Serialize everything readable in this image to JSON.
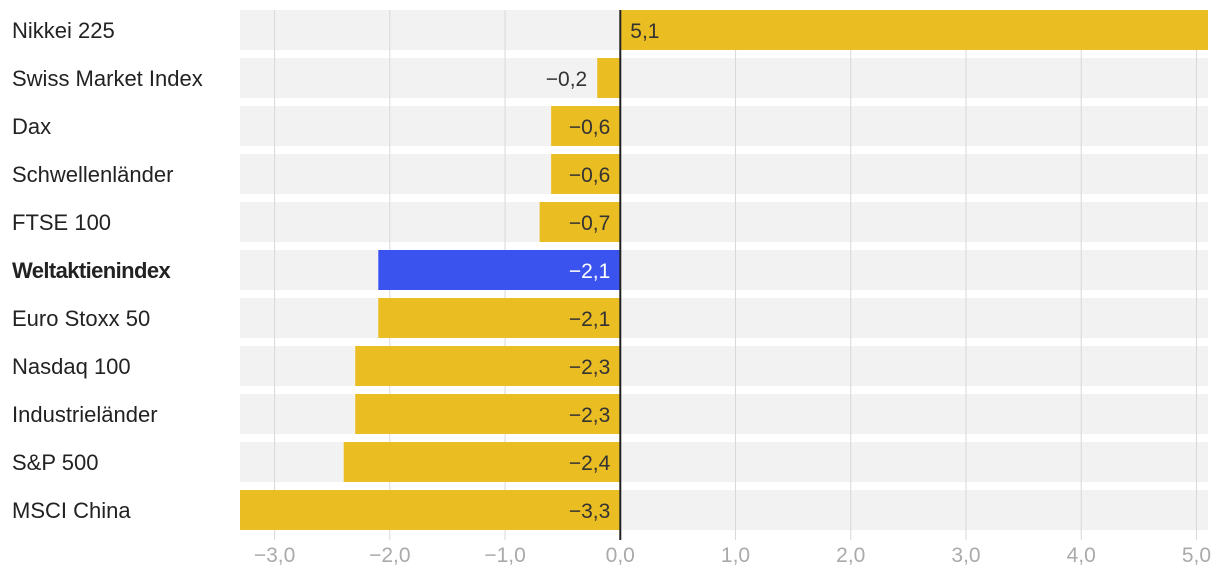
{
  "chart_data": {
    "type": "bar",
    "orientation": "horizontal",
    "title": "",
    "xlabel": "",
    "ylabel": "",
    "xlim": [
      -3.3,
      5.1
    ],
    "x_ticks": [
      -3,
      -2,
      -1,
      0,
      1,
      2,
      3,
      4,
      5
    ],
    "x_tick_labels": [
      "−3,0",
      "−2,0",
      "−1,0",
      "0,0",
      "1,0",
      "2,0",
      "3,0",
      "4,0",
      "5,0"
    ],
    "grid": true,
    "categories": [
      "Nikkei 225",
      "Swiss Market Index",
      "Dax",
      "Schwellenländer",
      "FTSE 100",
      "Weltaktienindex",
      "Euro Stoxx 50",
      "Nasdaq 100",
      "Industrieländer",
      "S&P 500",
      "MSCI China"
    ],
    "values": [
      5.1,
      -0.2,
      -0.6,
      -0.6,
      -0.7,
      -2.1,
      -2.1,
      -2.3,
      -2.3,
      -2.4,
      -3.3
    ],
    "value_labels": [
      "5,1",
      "−0,2",
      "−0,6",
      "−0,6",
      "−0,7",
      "−2,1",
      "−2,1",
      "−2,3",
      "−2,3",
      "−2,4",
      "−3,3"
    ],
    "highlight_category": "Weltaktienindex"
  },
  "colors": {
    "bar": "#EABD22",
    "highlight": "#3A53EE",
    "row_background": "#F2F2F2",
    "grid": "#D8D8D8",
    "zero_line": "#222222"
  }
}
